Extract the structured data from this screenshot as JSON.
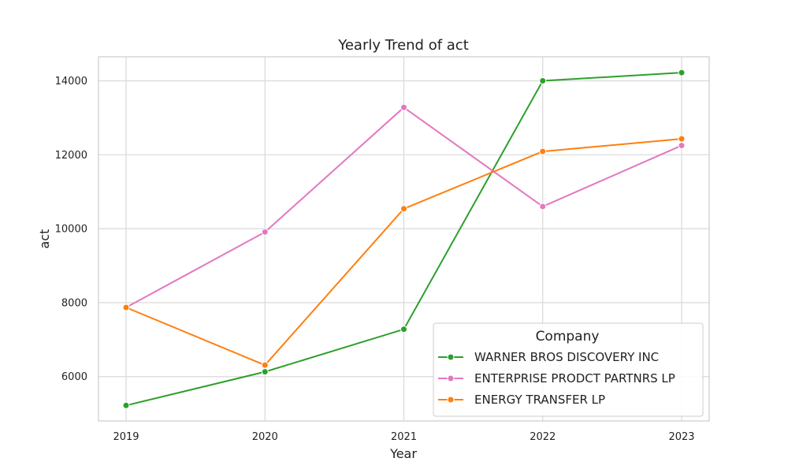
{
  "chart_data": {
    "type": "line",
    "title": "Yearly Trend of act",
    "xlabel": "Year",
    "ylabel": "act",
    "x": [
      "2019",
      "2020",
      "2021",
      "2022",
      "2023"
    ],
    "yticks": [
      "6000",
      "8000",
      "10000",
      "12000",
      "14000"
    ],
    "ylim": [
      4800,
      14650
    ],
    "grid": true,
    "legend_title": "Company",
    "legend_position": "lower-right",
    "series": [
      {
        "name": "WARNER BROS DISCOVERY INC",
        "color": "#2ca02c",
        "values": [
          5220,
          6130,
          7280,
          14000,
          14220
        ]
      },
      {
        "name": "ENTERPRISE PRODCT PARTNRS LP",
        "color": "#e377c2",
        "values": [
          7870,
          9910,
          13280,
          10600,
          12250
        ]
      },
      {
        "name": "ENERGY TRANSFER LP",
        "color": "#ff7f0e",
        "values": [
          7870,
          6310,
          10540,
          12090,
          12430
        ]
      }
    ]
  }
}
